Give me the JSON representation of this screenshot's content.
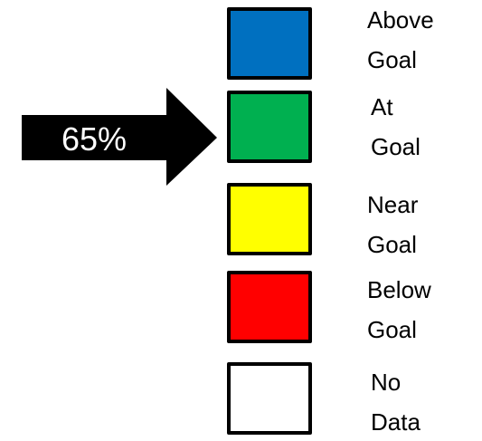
{
  "indicator": {
    "value_label": "65%",
    "points_to": "At Goal"
  },
  "legend": {
    "items": [
      {
        "line1": "Above",
        "line2": "Goal",
        "color": "#0070C0"
      },
      {
        "line1": "At",
        "line2": "Goal",
        "color": "#00B050"
      },
      {
        "line1": "Near",
        "line2": "Goal",
        "color": "#FFFF00"
      },
      {
        "line1": "Below",
        "line2": "Goal",
        "color": "#FF0000"
      },
      {
        "line1": "No",
        "line2": "Data",
        "color": "#FFFFFF"
      }
    ]
  }
}
